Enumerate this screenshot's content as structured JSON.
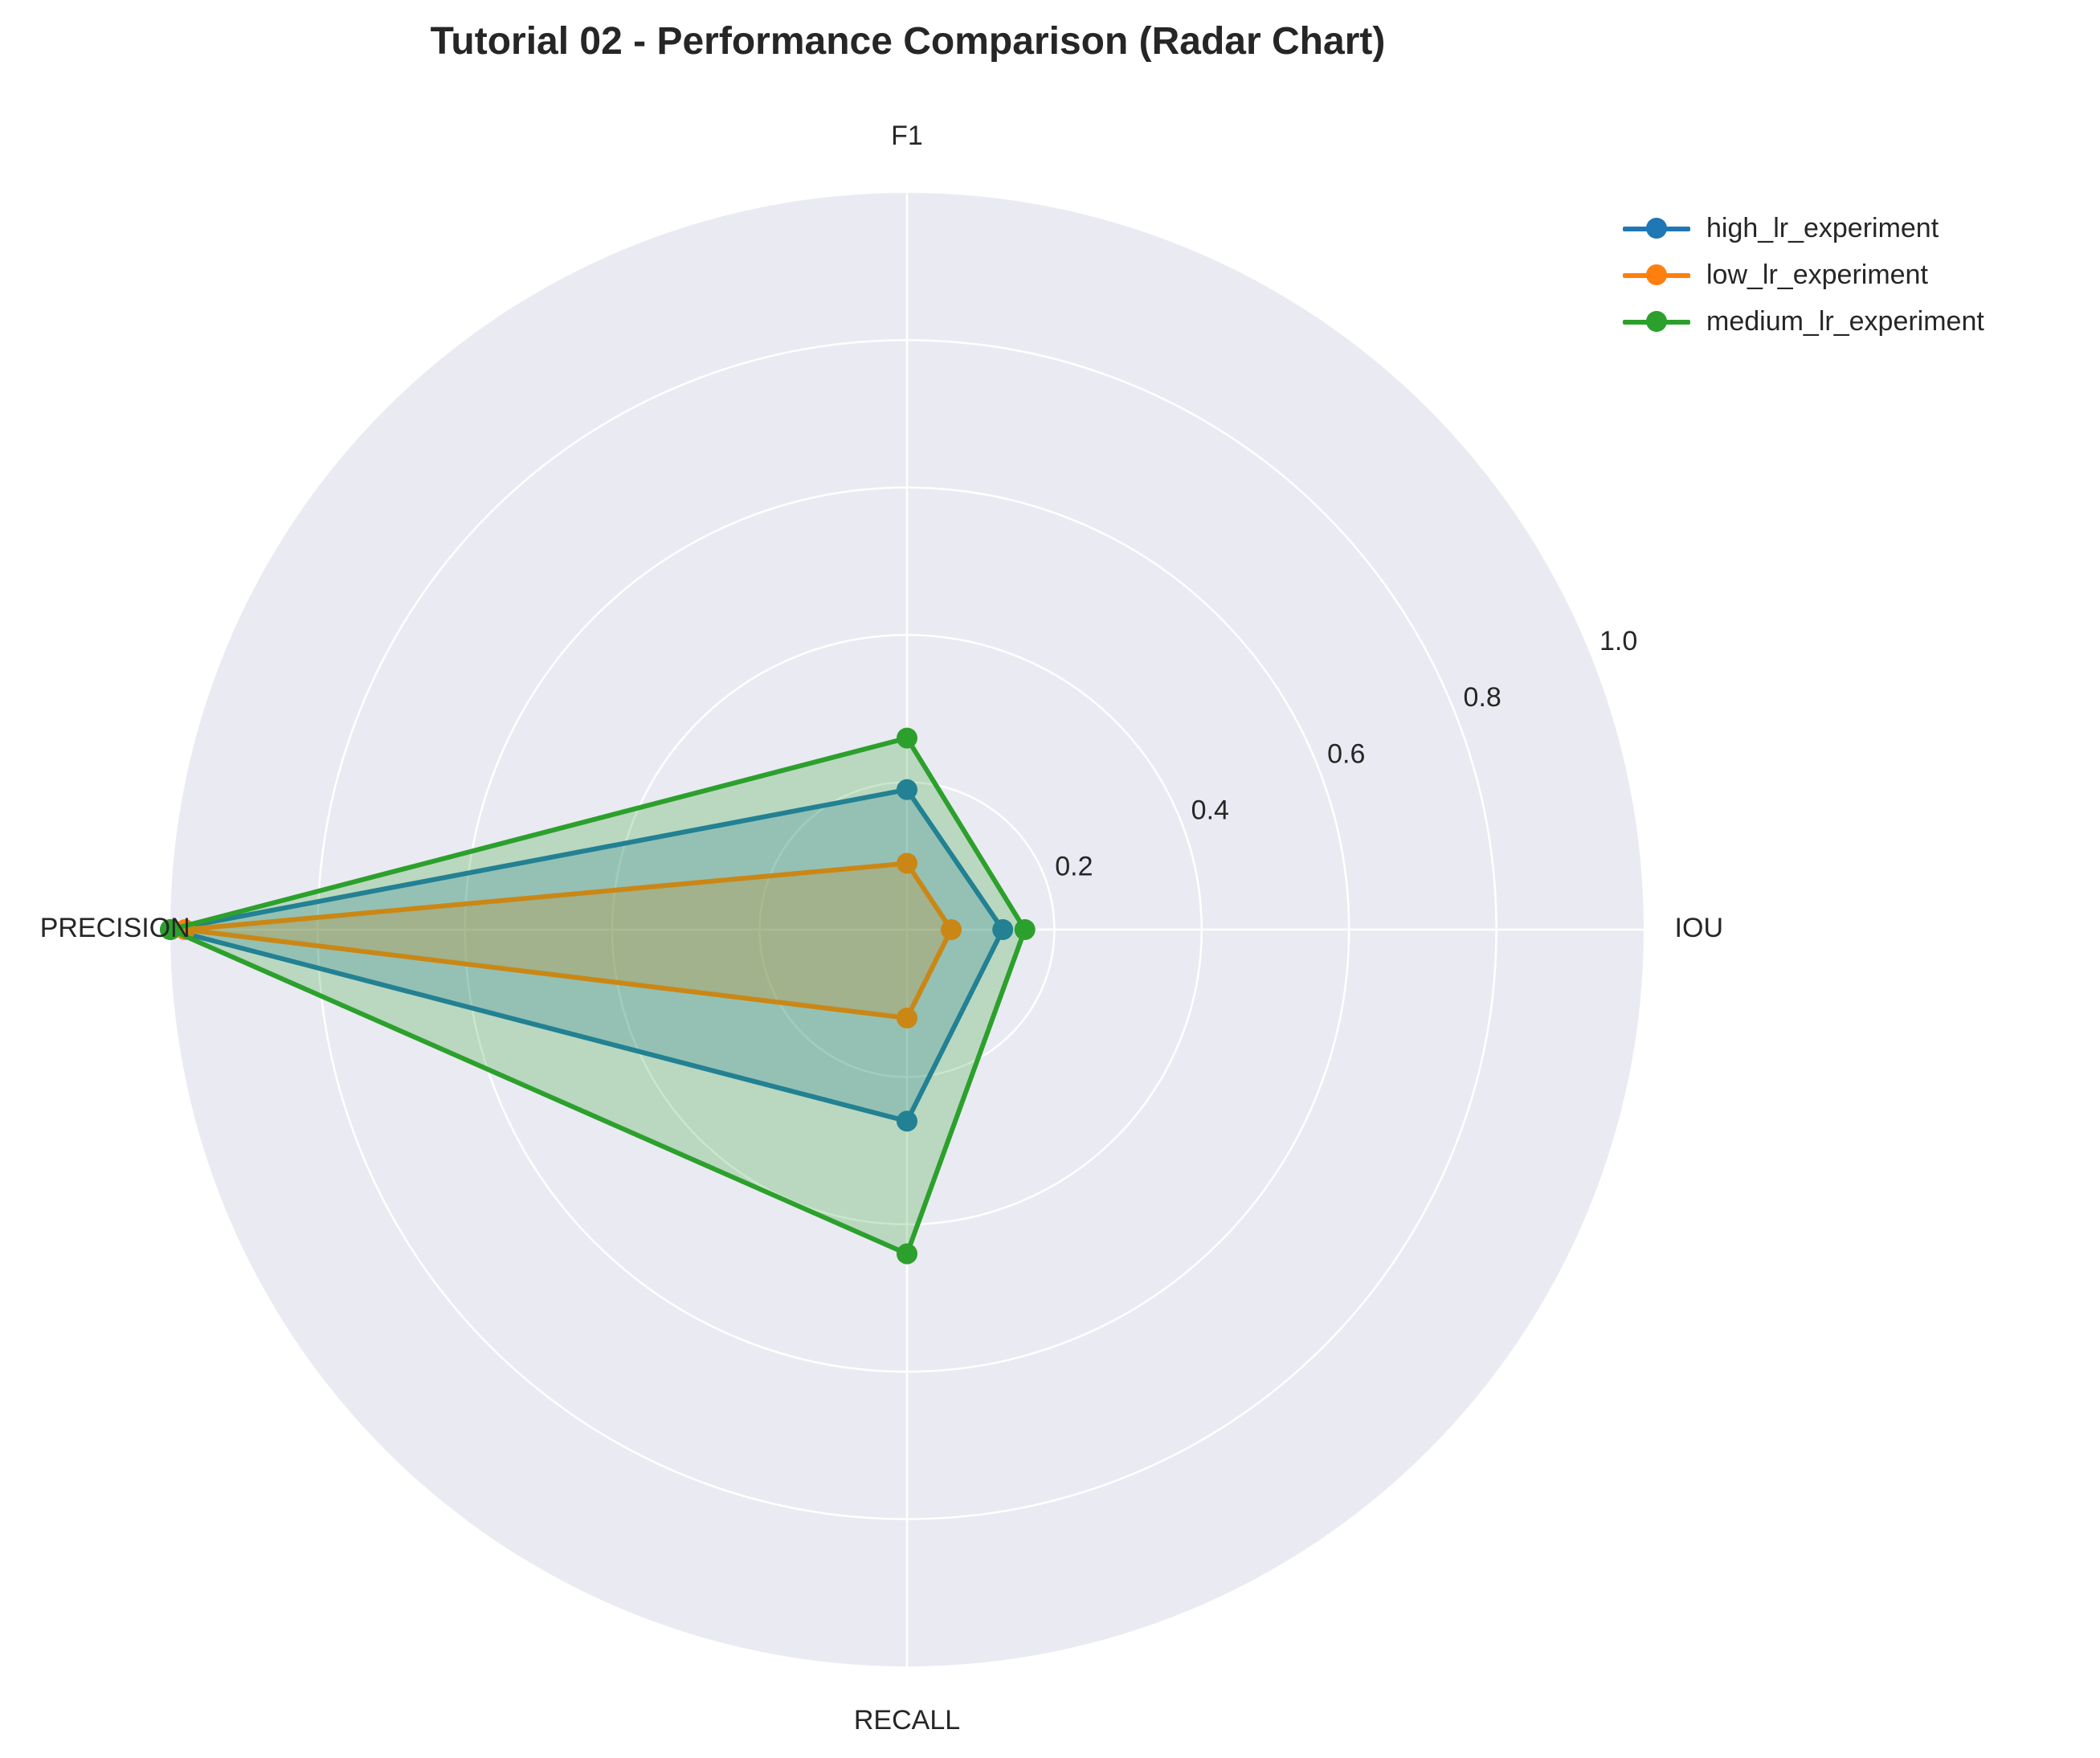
{
  "title": "Tutorial 02 - Performance Comparison (Radar Chart)",
  "chart_data": {
    "type": "radar",
    "title": "Tutorial 02 - Performance Comparison (Radar Chart)",
    "axes": [
      "IOU",
      "F1",
      "PRECISION",
      "RECALL"
    ],
    "rlim": [
      0,
      1.0
    ],
    "rticks": [
      0.2,
      0.4,
      0.6,
      0.8,
      1.0
    ],
    "rtick_labels": [
      "0.2",
      "0.4",
      "0.6",
      "0.8",
      "1.0"
    ],
    "grid": true,
    "legend_position": "top-right",
    "series": [
      {
        "name": "high_lr_experiment",
        "color": "#1f77b4",
        "values": [
          0.13,
          0.19,
          1.0,
          0.26
        ]
      },
      {
        "name": "low_lr_experiment",
        "color": "#ff7f0e",
        "values": [
          0.06,
          0.09,
          0.98,
          0.12
        ]
      },
      {
        "name": "medium_lr_experiment",
        "color": "#2ca02c",
        "values": [
          0.16,
          0.26,
          1.0,
          0.44
        ]
      }
    ]
  }
}
